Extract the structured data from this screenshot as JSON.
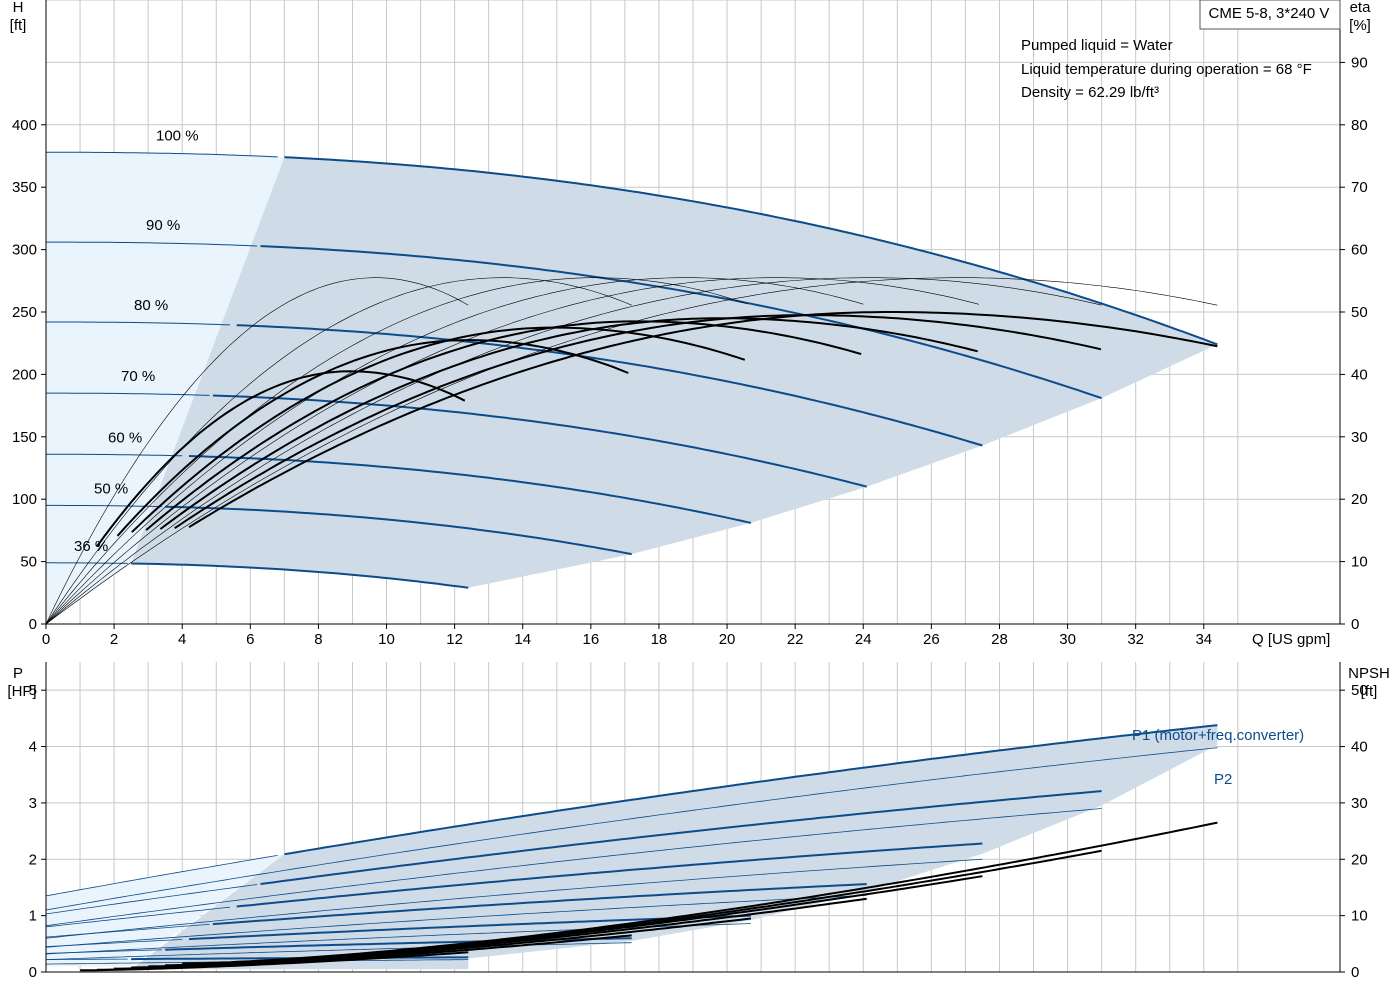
{
  "header": {
    "model": "CME 5-8, 3*240 V",
    "pumped_liquid": "Pumped liquid = Water",
    "liquid_temperature": "Liquid temperature during operation = 68 °F",
    "density": "Density = 62.29 lb/ft³"
  },
  "chart_data": [
    {
      "type": "line",
      "name": "head_efficiency",
      "ylabel_left": "H",
      "ylabel_left_unit": "[ft]",
      "ylabel_right": "eta",
      "ylabel_right_unit": "[%]",
      "xlabel": "Q [US gpm]",
      "x_ticks": [
        0,
        2,
        4,
        6,
        8,
        10,
        12,
        14,
        16,
        18,
        20,
        22,
        24,
        26,
        28,
        30,
        32,
        34
      ],
      "y_ticks_left": [
        0,
        50,
        100,
        150,
        200,
        250,
        300,
        350,
        400
      ],
      "y_ticks_right": [
        0,
        10,
        20,
        30,
        40,
        50,
        60,
        70,
        80,
        90
      ],
      "xlim": [
        0,
        38
      ],
      "ylim_left": [
        0,
        500
      ],
      "ylim_right": [
        0,
        100
      ],
      "grid": true,
      "speed_curves": [
        {
          "label": "100 %",
          "qmax": 34.4,
          "h0": 378,
          "hmax": 224
        },
        {
          "label": "90 %",
          "qmax": 31.0,
          "h0": 306,
          "hmax": 181
        },
        {
          "label": "80 %",
          "qmax": 27.5,
          "h0": 242,
          "hmax": 143
        },
        {
          "label": "70 %",
          "qmax": 24.1,
          "h0": 185,
          "hmax": 110
        },
        {
          "label": "60 %",
          "qmax": 20.7,
          "h0": 136,
          "hmax": 81
        },
        {
          "label": "50 %",
          "qmax": 17.2,
          "h0": 95,
          "hmax": 56
        },
        {
          "label": "36 %",
          "qmax": 12.4,
          "h0": 49,
          "hmax": 29
        }
      ],
      "efficiency_curves": [
        {
          "qmax": 34.4,
          "eta_end": 44.5
        },
        {
          "qmax": 31.0,
          "eta_end": 44.0
        },
        {
          "qmax": 27.5,
          "eta_end": 43.5
        },
        {
          "qmax": 24.1,
          "eta_end": 43.0
        },
        {
          "qmax": 20.7,
          "eta_end": 42.0
        },
        {
          "qmax": 17.2,
          "eta_end": 40.0
        },
        {
          "qmax": 12.4,
          "eta_end": 35.5
        }
      ]
    },
    {
      "type": "line",
      "name": "power_npsh",
      "ylabel_left": "P",
      "ylabel_left_unit": "[HP]",
      "ylabel_right": "NPSH",
      "ylabel_right_unit": "[ft]",
      "y_ticks_left": [
        0,
        1,
        2,
        3,
        4,
        5
      ],
      "y_ticks_right": [
        0,
        10,
        20,
        30,
        40,
        50
      ],
      "ylim_left": [
        0,
        5.5
      ],
      "series_labels": {
        "p1": "P1 (motor+freq.converter)",
        "p2": "P2"
      },
      "p1_curves": [
        {
          "qmax": 34.4,
          "p0": 1.35,
          "pend": 4.38
        },
        {
          "qmax": 31.0,
          "p0": 1.03,
          "pend": 3.21
        },
        {
          "qmax": 27.5,
          "p0": 0.8,
          "pend": 2.28
        },
        {
          "qmax": 24.1,
          "p0": 0.62,
          "pend": 1.56
        },
        {
          "qmax": 20.7,
          "p0": 0.45,
          "pend": 1.0
        },
        {
          "qmax": 17.2,
          "p0": 0.33,
          "pend": 0.6
        },
        {
          "qmax": 12.4,
          "p0": 0.22,
          "pend": 0.26
        }
      ],
      "p2_curves": [
        {
          "qmax": 34.4,
          "p0": 1.1,
          "pend": 3.98
        },
        {
          "qmax": 31.0,
          "p0": 0.82,
          "pend": 2.9
        },
        {
          "qmax": 27.5,
          "p0": 0.6,
          "pend": 2.0
        },
        {
          "qmax": 24.1,
          "p0": 0.44,
          "pend": 1.36
        },
        {
          "qmax": 20.7,
          "p0": 0.32,
          "pend": 0.86
        },
        {
          "qmax": 17.2,
          "p0": 0.22,
          "pend": 0.52
        },
        {
          "qmax": 12.4,
          "p0": 0.14,
          "pend": 0.22
        }
      ],
      "npsh_curves": [
        {
          "qmin": 4.0,
          "qmax": 34.4,
          "n0": 1.5,
          "nend": 26.5
        },
        {
          "qmin": 3.5,
          "qmax": 31.0,
          "n0": 1.2,
          "nend": 21.5
        },
        {
          "qmin": 3.0,
          "qmax": 27.5,
          "n0": 1.0,
          "nend": 17.0
        },
        {
          "qmin": 2.5,
          "qmax": 24.1,
          "n0": 0.8,
          "nend": 13.0
        },
        {
          "qmin": 2.0,
          "qmax": 20.7,
          "n0": 0.6,
          "nend": 9.5
        },
        {
          "qmin": 1.5,
          "qmax": 17.2,
          "n0": 0.4,
          "nend": 6.5
        },
        {
          "qmin": 1.0,
          "qmax": 12.4,
          "n0": 0.3,
          "nend": 3.5
        }
      ]
    }
  ]
}
